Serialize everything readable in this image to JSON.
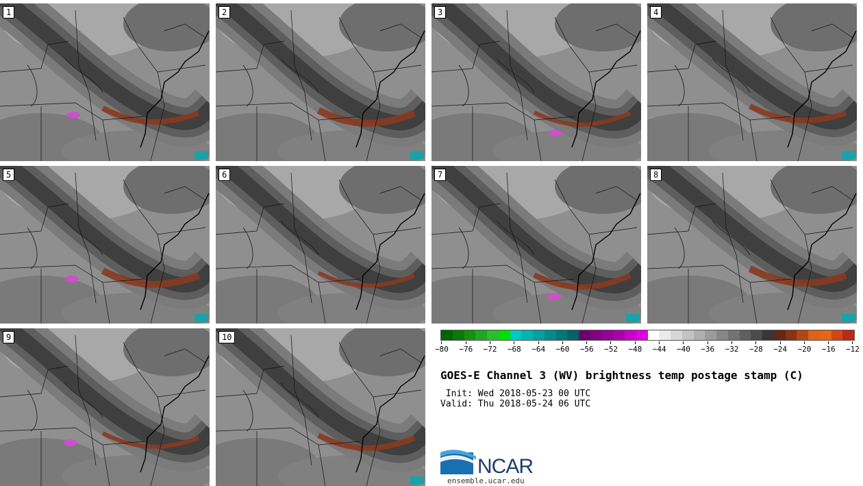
{
  "panels": [
    {
      "label": "1"
    },
    {
      "label": "2"
    },
    {
      "label": "3"
    },
    {
      "label": "4"
    },
    {
      "label": "5"
    },
    {
      "label": "6"
    },
    {
      "label": "7"
    },
    {
      "label": "8"
    },
    {
      "label": "9"
    },
    {
      "label": "10"
    }
  ],
  "colorbar": {
    "colors": [
      "#006400",
      "#0a7a0a",
      "#159015",
      "#20a620",
      "#2bbd2b",
      "#00e000",
      "#00c8c8",
      "#00b4b4",
      "#00a0a0",
      "#008c8c",
      "#007878",
      "#006464",
      "#6e006e",
      "#820082",
      "#960096",
      "#aa00aa",
      "#c800c8",
      "#e000e0",
      "#ffffff",
      "#ebebeb",
      "#d7d7d7",
      "#c3c3c3",
      "#afafaf",
      "#9b9b9b",
      "#878787",
      "#737373",
      "#5f5f5f",
      "#4b4b4b",
      "#373737",
      "#642814",
      "#8c3214",
      "#b44614",
      "#dc6414",
      "#e66414",
      "#d24614",
      "#be2814"
    ],
    "tick_labels": [
      "−80",
      "−76",
      "−72",
      "−68",
      "−64",
      "−60",
      "−56",
      "−52",
      "−48",
      "−44",
      "−40",
      "−36",
      "−32",
      "−28",
      "−24",
      "−20",
      "−16",
      "−12"
    ]
  },
  "title": "GOES-E Channel 3 (WV) brightness temp postage stamp (C)",
  "init_line": " Init: Wed 2018-05-23 00 UTC",
  "valid_line": "Valid: Thu 2018-05-24 06 UTC",
  "logo": {
    "name": "NCAR",
    "url": "ensemble.ucar.edu"
  }
}
